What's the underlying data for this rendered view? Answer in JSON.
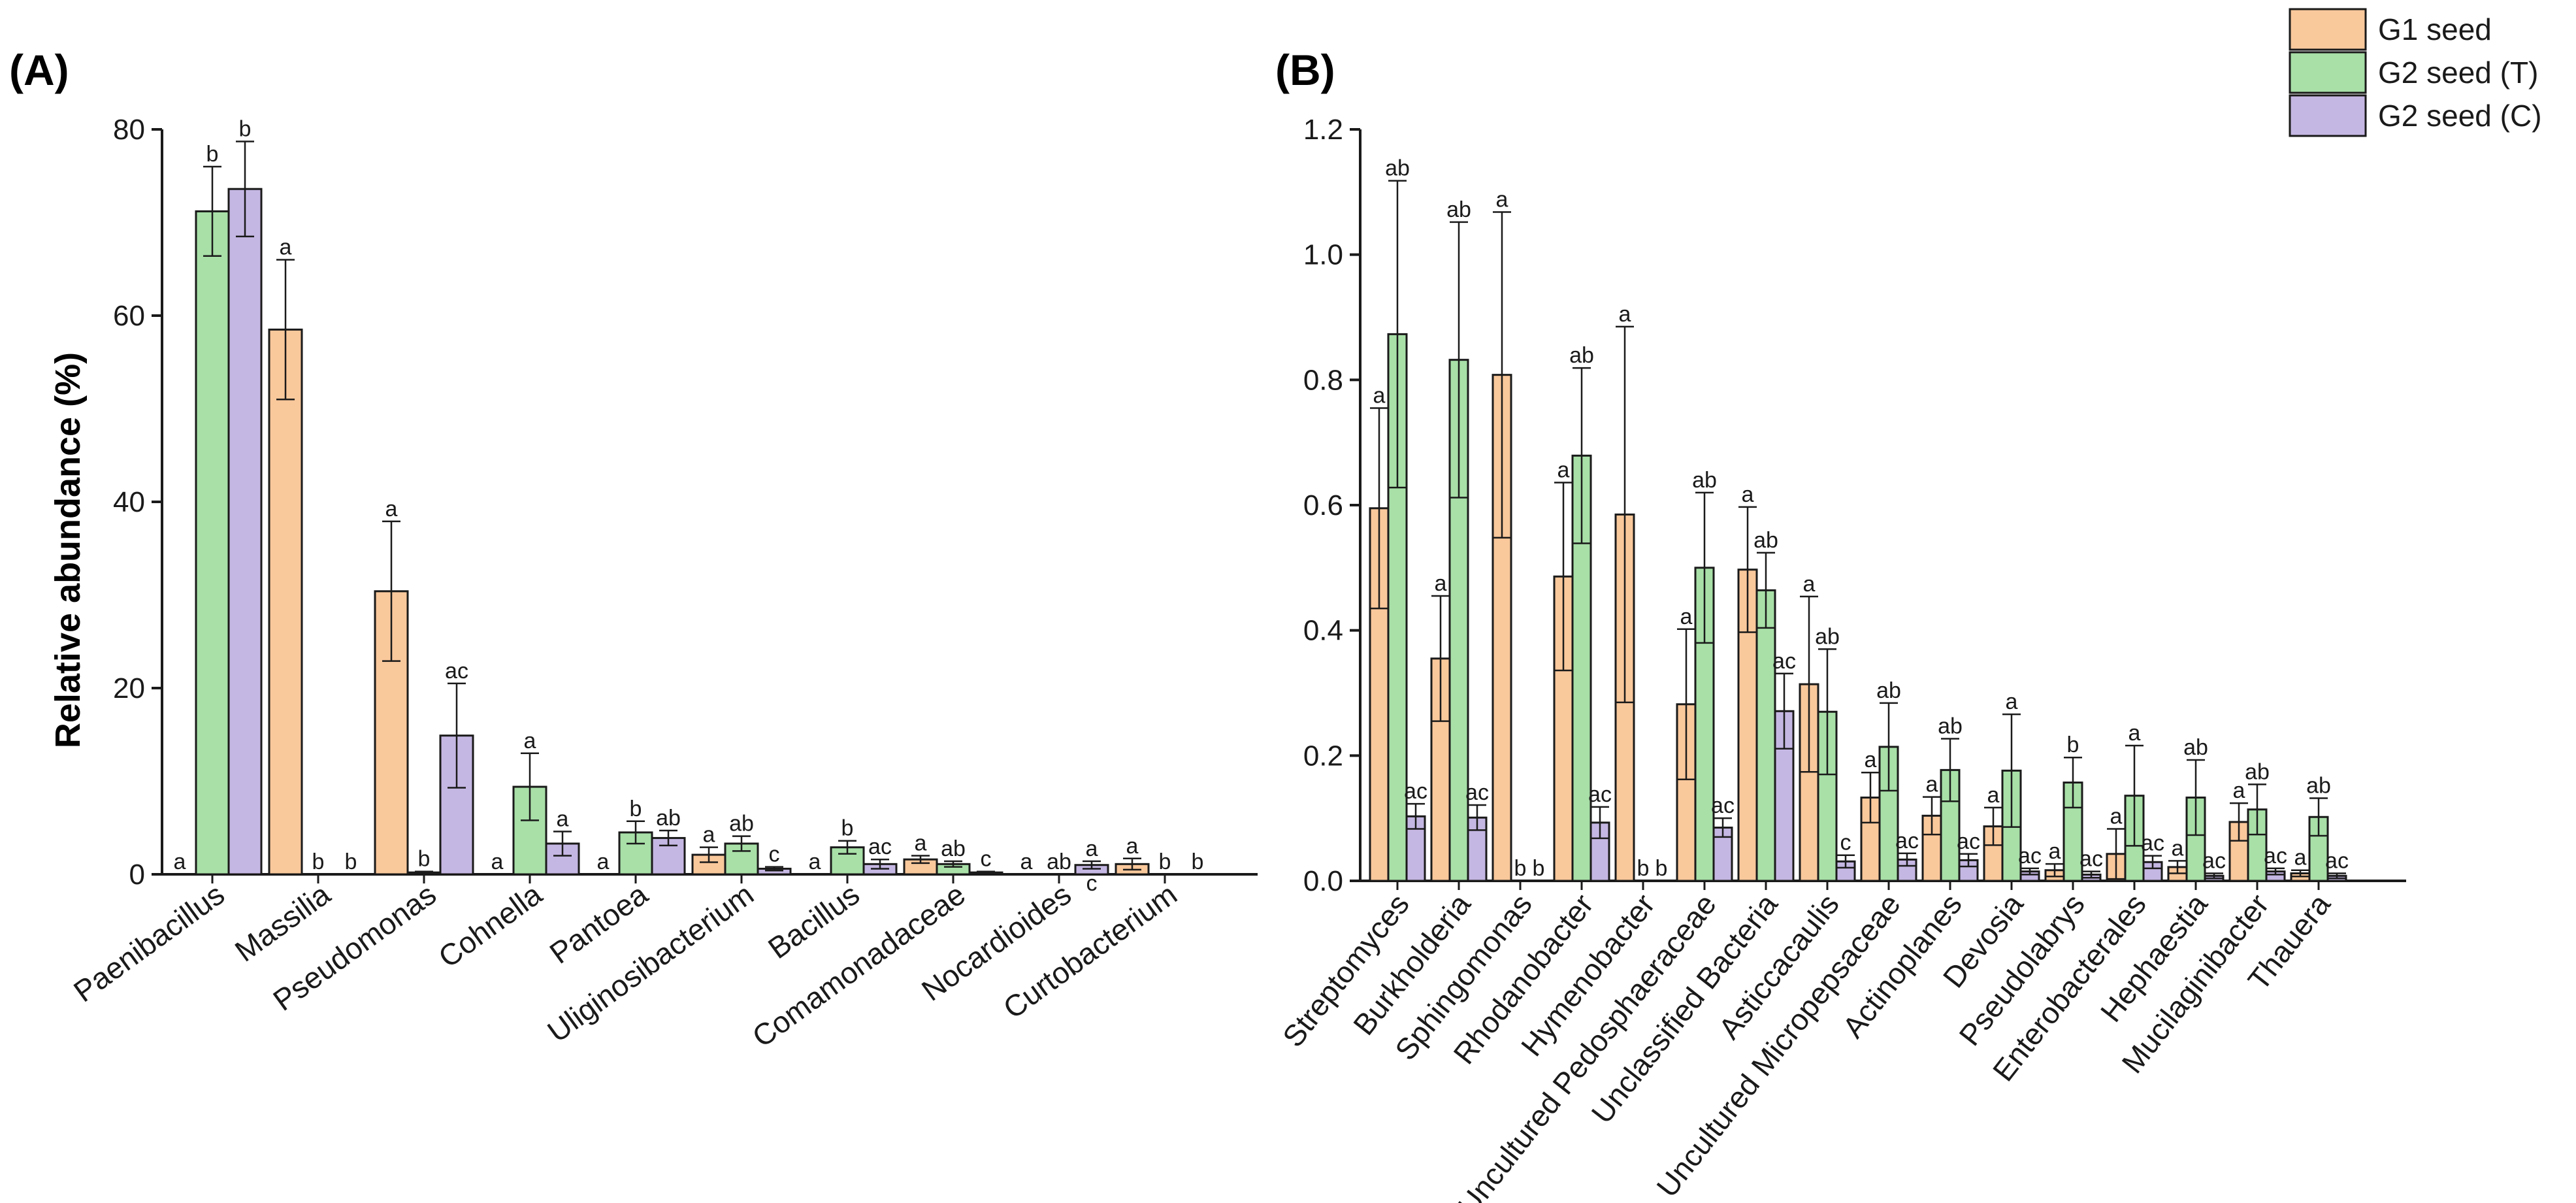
{
  "chart_data": [
    {
      "type": "bar",
      "panel_label": "(A)",
      "ylabel": "Relative abundance (%)",
      "xlabel": "",
      "ylim": [
        0,
        80
      ],
      "yticks": [
        "0",
        "20",
        "40",
        "60",
        "80"
      ],
      "categories": [
        "Paenibacillus",
        "Massilia",
        "Pseudomonas",
        "Cohnella",
        "Pantoea",
        "Uliginosibacterium",
        "Bacillus",
        "Comamonadaceae",
        "Nocardioides",
        "Curtobacterium"
      ],
      "series": [
        {
          "name": "G1 seed",
          "values": [
            0,
            58.5,
            30.4,
            0,
            0,
            2.1,
            0,
            1.6,
            0,
            1.1
          ],
          "errors": [
            0,
            7.5,
            7.5,
            0,
            0,
            0.8,
            0,
            0.4,
            0,
            0.6
          ],
          "labels": [
            "a",
            "a",
            "a",
            "a",
            "a",
            "a",
            "a",
            "a",
            "a",
            "a"
          ]
        },
        {
          "name": "G2 seed (T)",
          "values": [
            71.2,
            0,
            0.2,
            9.4,
            4.5,
            3.3,
            2.9,
            1.1,
            0,
            0
          ],
          "errors": [
            4.8,
            0,
            0.1,
            3.6,
            1.2,
            0.8,
            0.7,
            0.3,
            0,
            0
          ],
          "labels": [
            "b",
            "b",
            "b",
            "a",
            "b",
            "ab",
            "b",
            "ab",
            "ab",
            "b"
          ]
        },
        {
          "name": "G2 seed (C)",
          "values": [
            73.6,
            0,
            14.9,
            3.3,
            3.9,
            0.6,
            1.1,
            0.2,
            1.0,
            0
          ],
          "errors": [
            5.1,
            0,
            5.6,
            1.3,
            0.8,
            0.2,
            0.5,
            0.1,
            0.4,
            0
          ],
          "labels": [
            "b",
            "b",
            "ac",
            "a",
            "ab",
            "c",
            "ac",
            "c",
            "a",
            "b"
          ]
        }
      ],
      "extra_labels": [
        "c"
      ]
    },
    {
      "type": "bar",
      "panel_label": "(B)",
      "ylabel": "",
      "xlabel": "",
      "ylim": [
        0,
        1.2
      ],
      "yticks": [
        "0.0",
        "0.2",
        "0.4",
        "0.6",
        "0.8",
        "1.0",
        "1.2"
      ],
      "categories": [
        "Streptomyces",
        "Burkholderia",
        "Sphingomonas",
        "Rhodanobacter",
        "Hymenobacter",
        "Uncultured Pedosphaeraceae",
        "Unclassified Bacteria",
        "Asticcacaulis",
        "Uncultured Micropepsaceae",
        "Actinoplanes",
        "Devosia",
        "Pseudolabrys",
        "Enterobacterales",
        "Hephaestia",
        "Mucilaginibacter",
        "Thauera"
      ],
      "series": [
        {
          "name": "G1 seed",
          "values": [
            0.595,
            0.355,
            0.808,
            0.486,
            0.585,
            0.282,
            0.497,
            0.314,
            0.133,
            0.104,
            0.087,
            0.017,
            0.043,
            0.022,
            0.094,
            0.012
          ],
          "errors": [
            0.16,
            0.1,
            0.26,
            0.15,
            0.3,
            0.12,
            0.1,
            0.14,
            0.04,
            0.03,
            0.03,
            0.01,
            0.04,
            0.01,
            0.03,
            0.005
          ],
          "labels": [
            "a",
            "a",
            "a",
            "a",
            "a",
            "a",
            "a",
            "a",
            "a",
            "a",
            "a",
            "a",
            "a",
            "a",
            "a",
            "a"
          ]
        },
        {
          "name": "G2 seed (T)",
          "values": [
            0.873,
            0.832,
            0,
            0.679,
            0,
            0.5,
            0.464,
            0.27,
            0.214,
            0.177,
            0.176,
            0.157,
            0.136,
            0.133,
            0.114,
            0.102
          ],
          "errors": [
            0.245,
            0.22,
            0,
            0.14,
            0,
            0.12,
            0.06,
            0.1,
            0.07,
            0.05,
            0.09,
            0.04,
            0.08,
            0.06,
            0.04,
            0.03
          ],
          "labels": [
            "ab",
            "ab",
            "b",
            "ab",
            "b",
            "ab",
            "ab",
            "ab",
            "ab",
            "ab",
            "a",
            "b",
            "a",
            "ab",
            "ab",
            "ab"
          ]
        },
        {
          "name": "G2 seed (C)",
          "values": [
            0.103,
            0.101,
            0,
            0.093,
            0,
            0.085,
            0.271,
            0.031,
            0.034,
            0.033,
            0.015,
            0.01,
            0.03,
            0.008,
            0.015,
            0.008
          ],
          "errors": [
            0.02,
            0.02,
            0,
            0.025,
            0,
            0.015,
            0.06,
            0.01,
            0.01,
            0.01,
            0.005,
            0.005,
            0.01,
            0.004,
            0.005,
            0.004
          ],
          "labels": [
            "ac",
            "ac",
            "b",
            "ac",
            "b",
            "ac",
            "ac",
            "c",
            "ac",
            "ac",
            "ac",
            "ac",
            "ac",
            "ac",
            "ac",
            "ac"
          ]
        }
      ],
      "legend": {
        "placement": "top-right",
        "entries": [
          {
            "name": "G1 seed",
            "color": "#f9c89b"
          },
          {
            "name": "G2 seed (T)",
            "color": "#a8e0a8"
          },
          {
            "name": "G2 seed (C)",
            "color": "#c5b7e3"
          }
        ]
      }
    }
  ],
  "colors": {
    "G1 seed": "#f9c89b",
    "G2 seed (T)": "#a8e0a8",
    "G2 seed (C)": "#c5b7e3",
    "ink": "#1a1a1a"
  }
}
